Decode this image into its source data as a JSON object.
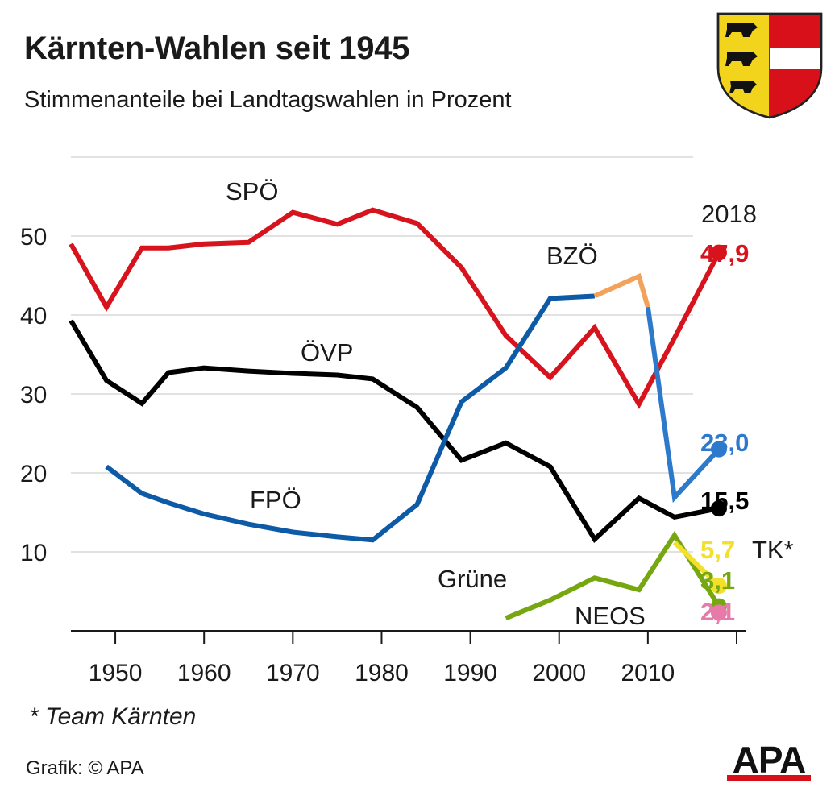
{
  "title": "Kärnten-Wahlen seit 1945",
  "subtitle": "Stimmenanteile bei Landtagswahlen in Prozent",
  "footnote": "* Team Kärnten",
  "source": "Grafik: © APA",
  "logo_text": "APA",
  "crest_icon": "carinthia-coat-of-arms-icon",
  "colors": {
    "spo": "#d7141d",
    "fpo": "#0d5aa6",
    "fpo_light": "#2d79cc",
    "bzo": "#f2a25a",
    "ovp": "#000000",
    "gruene": "#76a711",
    "tk": "#f2e02a",
    "neos": "#e77aa8",
    "grid": "#d9d9d9"
  },
  "chart_data": {
    "type": "line",
    "title": "Kärnten-Wahlen seit 1945",
    "subtitle": "Stimmenanteile bei Landtagswahlen in Prozent",
    "xlabel": "",
    "ylabel": "",
    "xlim": [
      1945,
      2021
    ],
    "ylim": [
      0,
      60
    ],
    "x_ticks": [
      1950,
      1960,
      1970,
      1980,
      1990,
      2000,
      2010
    ],
    "x_tick_labels": [
      "1950",
      "1960",
      "1970",
      "1980",
      "1990",
      "2000",
      "2010"
    ],
    "y_ticks": [
      10,
      20,
      30,
      40,
      50
    ],
    "y_tick_labels": [
      "10",
      "20",
      "30",
      "40",
      "50"
    ],
    "grid": true,
    "end_year_label": "2018",
    "series": [
      {
        "name": "SPÖ",
        "color_key": "spo",
        "end_label": "47,9",
        "points": [
          [
            1945,
            49.0
          ],
          [
            1949,
            41.0
          ],
          [
            1953,
            48.5
          ],
          [
            1956,
            48.5
          ],
          [
            1960,
            49.0
          ],
          [
            1965,
            49.2
          ],
          [
            1970,
            53.0
          ],
          [
            1975,
            51.5
          ],
          [
            1979,
            53.3
          ],
          [
            1984,
            51.6
          ],
          [
            1989,
            46.0
          ],
          [
            1994,
            37.4
          ],
          [
            1999,
            32.1
          ],
          [
            2004,
            38.4
          ],
          [
            2009,
            28.7
          ],
          [
            2013,
            37.1
          ],
          [
            2018,
            47.9
          ]
        ]
      },
      {
        "name": "ÖVP",
        "color_key": "ovp",
        "end_label": "15,5",
        "points": [
          [
            1945,
            39.3
          ],
          [
            1949,
            31.7
          ],
          [
            1953,
            28.8
          ],
          [
            1956,
            32.7
          ],
          [
            1960,
            33.3
          ],
          [
            1965,
            32.9
          ],
          [
            1970,
            32.6
          ],
          [
            1975,
            32.4
          ],
          [
            1979,
            31.9
          ],
          [
            1984,
            28.3
          ],
          [
            1989,
            21.6
          ],
          [
            1994,
            23.8
          ],
          [
            1999,
            20.8
          ],
          [
            2004,
            11.6
          ],
          [
            2009,
            16.8
          ],
          [
            2013,
            14.4
          ],
          [
            2018,
            15.5
          ]
        ]
      },
      {
        "name": "FPÖ",
        "color_key": "fpo",
        "end_label": "23,0",
        "points": [
          [
            1949,
            20.8
          ],
          [
            1953,
            17.4
          ],
          [
            1956,
            16.2
          ],
          [
            1960,
            14.8
          ],
          [
            1965,
            13.5
          ],
          [
            1970,
            12.5
          ],
          [
            1975,
            11.9
          ],
          [
            1979,
            11.5
          ],
          [
            1984,
            16.0
          ],
          [
            1989,
            29.0
          ],
          [
            1994,
            33.3
          ],
          [
            1999,
            42.1
          ],
          [
            2004,
            42.4
          ]
        ]
      },
      {
        "name": "BZÖ",
        "color_key": "bzo",
        "end_label": "",
        "points": [
          [
            2004,
            42.4
          ],
          [
            2009,
            44.9
          ],
          [
            2010,
            41.0
          ]
        ]
      },
      {
        "name": "FPÖ",
        "color_key": "fpo_light",
        "end_label": "",
        "points": [
          [
            2010,
            41.0
          ],
          [
            2013,
            16.9
          ],
          [
            2018,
            23.0
          ]
        ]
      },
      {
        "name": "Grüne",
        "color_key": "gruene",
        "end_label": "3,1",
        "points": [
          [
            1994,
            1.6
          ],
          [
            1999,
            3.9
          ],
          [
            2004,
            6.7
          ],
          [
            2009,
            5.2
          ],
          [
            2013,
            12.1
          ],
          [
            2018,
            3.1
          ]
        ]
      },
      {
        "name": "TK*",
        "color_key": "tk",
        "end_label": "5,7",
        "points": [
          [
            2013,
            11.2
          ],
          [
            2018,
            5.7
          ]
        ]
      },
      {
        "name": "NEOS",
        "color_key": "neos",
        "end_label": "2,1",
        "points": [
          [
            2018,
            2.1
          ]
        ]
      }
    ]
  }
}
